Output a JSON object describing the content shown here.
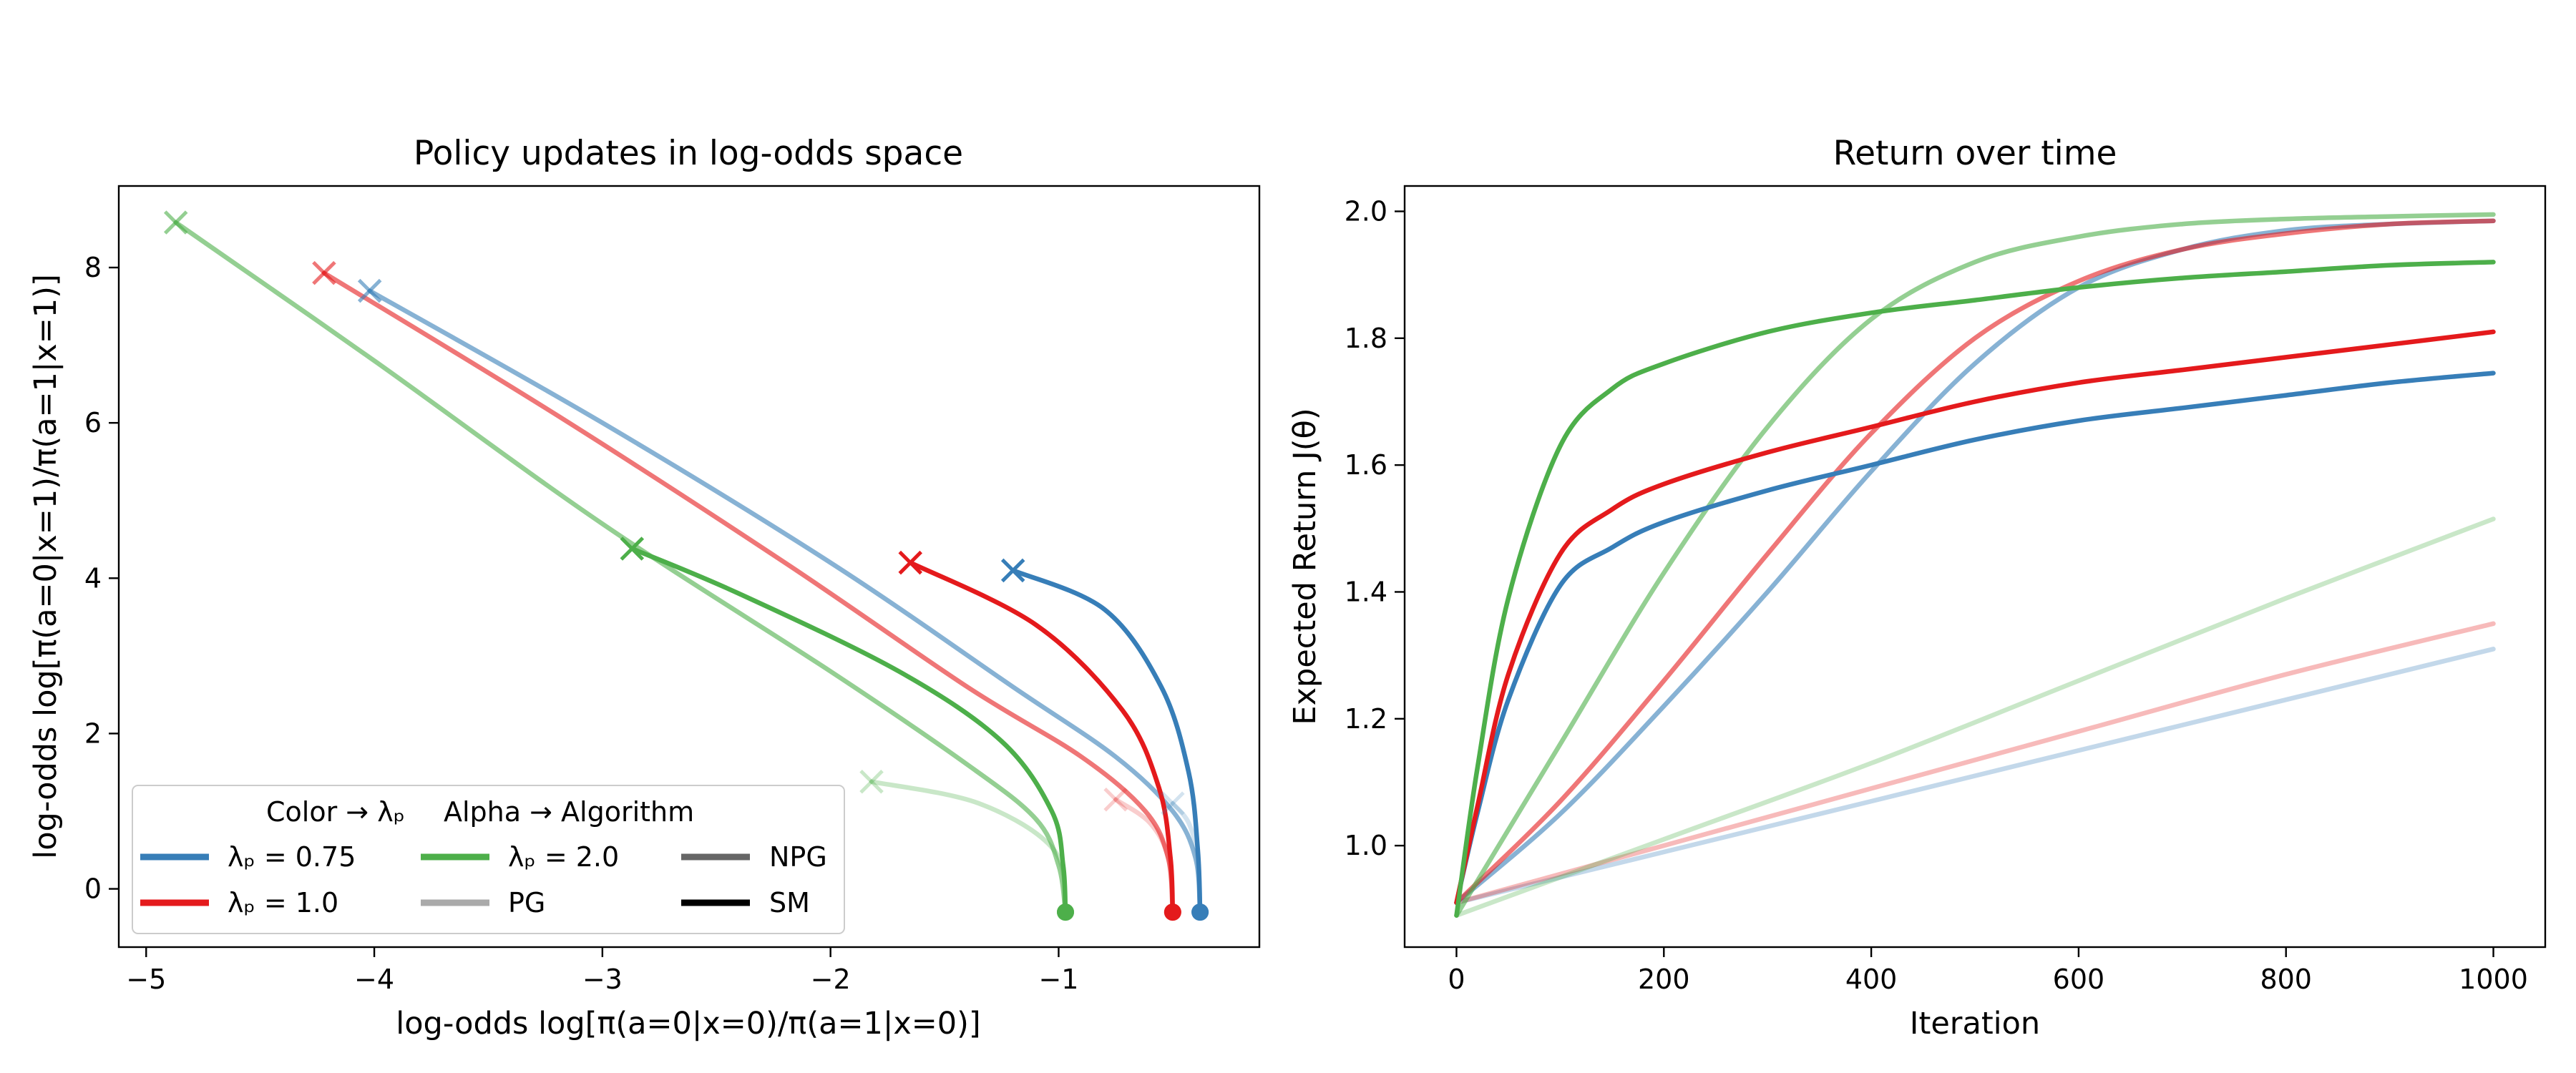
{
  "chart_data": [
    {
      "type": "line",
      "title": "Policy updates in log-odds space",
      "xlabel": "log-odds  log[π(a=0|x=0)/π(a=1|x=0)]",
      "ylabel": "log-odds  log[π(a=0|x=1)/π(a=1|x=1)]",
      "xlim": [
        -5.12,
        -0.12
      ],
      "ylim": [
        -0.75,
        9.05
      ],
      "xticks": [
        -5,
        -4,
        -3,
        -2,
        -1
      ],
      "xtick_labels": [
        "−5",
        "−4",
        "−3",
        "−2",
        "−1"
      ],
      "yticks": [
        0,
        2,
        4,
        6,
        8
      ],
      "ytick_labels": [
        "0",
        "2",
        "4",
        "6",
        "8"
      ],
      "start_point": "circle",
      "end_point": "x",
      "series": [
        {
          "name": "λp = 0.75, PG",
          "color": "#377eb8",
          "opacity": 0.22,
          "x": [
            -0.38,
            -0.39,
            -0.43,
            -0.5
          ],
          "y": [
            -0.3,
            0.4,
            0.85,
            1.1
          ]
        },
        {
          "name": "λp = 1.0, PG",
          "color": "#e41a1c",
          "opacity": 0.22,
          "x": [
            -0.5,
            -0.52,
            -0.6,
            -0.75
          ],
          "y": [
            -0.3,
            0.4,
            0.85,
            1.15
          ]
        },
        {
          "name": "λp = 2.0, PG",
          "color": "#4daf4a",
          "opacity": 0.3,
          "x": [
            -0.97,
            -1.02,
            -1.35,
            -1.82
          ],
          "y": [
            -0.3,
            0.5,
            1.1,
            1.38
          ]
        },
        {
          "name": "λp = 0.75, NPG",
          "color": "#377eb8",
          "opacity": 0.6,
          "x": [
            -0.38,
            -0.4,
            -0.5,
            -0.75,
            -1.2,
            -2.0,
            -3.0,
            -4.02
          ],
          "y": [
            -0.3,
            0.4,
            1.0,
            1.7,
            2.6,
            4.2,
            6.0,
            7.7
          ]
        },
        {
          "name": "λp = 1.0, NPG",
          "color": "#e41a1c",
          "opacity": 0.6,
          "x": [
            -0.5,
            -0.52,
            -0.62,
            -0.9,
            -1.4,
            -2.2,
            -3.2,
            -4.22
          ],
          "y": [
            -0.3,
            0.4,
            1.0,
            1.7,
            2.6,
            4.2,
            6.1,
            7.93
          ]
        },
        {
          "name": "λp = 2.0, NPG",
          "color": "#4daf4a",
          "opacity": 0.6,
          "x": [
            -0.97,
            -1.0,
            -1.1,
            -1.4,
            -2.0,
            -3.0,
            -4.0,
            -4.87
          ],
          "y": [
            -0.3,
            0.3,
            0.9,
            1.6,
            2.8,
            4.7,
            6.8,
            8.58
          ]
        },
        {
          "name": "λp = 0.75, SM",
          "color": "#377eb8",
          "opacity": 1.0,
          "x": [
            -0.38,
            -0.39,
            -0.43,
            -0.55,
            -0.8,
            -1.2
          ],
          "y": [
            -0.3,
            0.5,
            1.5,
            2.6,
            3.6,
            4.1
          ]
        },
        {
          "name": "λp = 1.0, SM",
          "color": "#e41a1c",
          "opacity": 1.0,
          "x": [
            -0.5,
            -0.51,
            -0.56,
            -0.72,
            -1.1,
            -1.65
          ],
          "y": [
            -0.3,
            0.4,
            1.3,
            2.3,
            3.4,
            4.2
          ]
        },
        {
          "name": "λp = 2.0, SM",
          "color": "#4daf4a",
          "opacity": 1.0,
          "x": [
            -0.97,
            -0.98,
            -1.03,
            -1.25,
            -1.7,
            -2.4,
            -2.87
          ],
          "y": [
            -0.3,
            0.3,
            1.0,
            1.9,
            2.8,
            3.8,
            4.38
          ]
        }
      ],
      "legend": {
        "location": "lower-left",
        "header_color": "Color → λₚ",
        "header_alpha": "Alpha → Algorithm",
        "entries": [
          {
            "label": "λₚ = 0.75",
            "color": "#377eb8"
          },
          {
            "label": "λₚ = 1.0",
            "color": "#e41a1c"
          },
          {
            "label": "λₚ = 2.0",
            "color": "#4daf4a"
          },
          {
            "label": "PG",
            "color": "#aaaaaa"
          },
          {
            "label": "NPG",
            "color": "#666666"
          },
          {
            "label": "SM",
            "color": "#000000"
          }
        ]
      }
    },
    {
      "type": "line",
      "title": "Return over time",
      "xlabel": "Iteration",
      "ylabel": "Expected Return J(θ)",
      "xlim": [
        -50,
        1050
      ],
      "ylim": [
        0.84,
        2.04
      ],
      "xticks": [
        0,
        200,
        400,
        600,
        800,
        1000
      ],
      "xtick_labels": [
        "0",
        "200",
        "400",
        "600",
        "800",
        "1000"
      ],
      "yticks": [
        1.0,
        1.2,
        1.4,
        1.6,
        1.8,
        2.0
      ],
      "ytick_labels": [
        "1.0",
        "1.2",
        "1.4",
        "1.6",
        "1.8",
        "2.0"
      ],
      "series": [
        {
          "name": "λp = 0.75, PG",
          "color": "#377eb8",
          "opacity": 0.3,
          "x": [
            0,
            200,
            400,
            600,
            800,
            1000
          ],
          "y": [
            0.91,
            0.99,
            1.07,
            1.15,
            1.23,
            1.31
          ]
        },
        {
          "name": "λp = 1.0, PG",
          "color": "#e41a1c",
          "opacity": 0.3,
          "x": [
            0,
            200,
            400,
            600,
            800,
            1000
          ],
          "y": [
            0.91,
            1.0,
            1.09,
            1.18,
            1.27,
            1.35
          ]
        },
        {
          "name": "λp = 2.0, PG",
          "color": "#4daf4a",
          "opacity": 0.3,
          "x": [
            0,
            200,
            400,
            600,
            800,
            1000
          ],
          "y": [
            0.89,
            1.01,
            1.13,
            1.26,
            1.39,
            1.515
          ]
        },
        {
          "name": "λp = 0.75, NPG",
          "color": "#377eb8",
          "opacity": 0.6,
          "x": [
            0,
            100,
            200,
            300,
            400,
            500,
            600,
            700,
            800,
            900,
            1000
          ],
          "y": [
            0.91,
            1.05,
            1.22,
            1.4,
            1.59,
            1.76,
            1.88,
            1.94,
            1.97,
            1.98,
            1.985
          ]
        },
        {
          "name": "λp = 1.0, NPG",
          "color": "#e41a1c",
          "opacity": 0.6,
          "x": [
            0,
            100,
            200,
            300,
            400,
            500,
            600,
            700,
            800,
            900,
            1000
          ],
          "y": [
            0.91,
            1.07,
            1.26,
            1.46,
            1.65,
            1.8,
            1.89,
            1.94,
            1.965,
            1.98,
            1.985
          ]
        },
        {
          "name": "λp = 2.0, NPG",
          "color": "#4daf4a",
          "opacity": 0.6,
          "x": [
            0,
            100,
            200,
            300,
            400,
            500,
            600,
            700,
            800,
            900,
            1000
          ],
          "y": [
            0.89,
            1.16,
            1.43,
            1.66,
            1.83,
            1.92,
            1.96,
            1.98,
            1.988,
            1.992,
            1.995
          ]
        },
        {
          "name": "λp = 0.75, SM",
          "color": "#377eb8",
          "opacity": 1.0,
          "x": [
            0,
            20,
            50,
            100,
            150,
            200,
            300,
            400,
            500,
            600,
            700,
            800,
            900,
            1000
          ],
          "y": [
            0.91,
            1.05,
            1.23,
            1.41,
            1.47,
            1.51,
            1.56,
            1.6,
            1.64,
            1.67,
            1.69,
            1.71,
            1.73,
            1.745
          ]
        },
        {
          "name": "λp = 1.0, SM",
          "color": "#e41a1c",
          "opacity": 1.0,
          "x": [
            0,
            20,
            50,
            100,
            150,
            200,
            300,
            400,
            500,
            600,
            700,
            800,
            900,
            1000
          ],
          "y": [
            0.91,
            1.06,
            1.27,
            1.46,
            1.53,
            1.57,
            1.62,
            1.66,
            1.7,
            1.73,
            1.75,
            1.77,
            1.79,
            1.81
          ]
        },
        {
          "name": "λp = 2.0, SM",
          "color": "#4daf4a",
          "opacity": 1.0,
          "x": [
            0,
            20,
            50,
            100,
            150,
            200,
            300,
            400,
            500,
            600,
            700,
            800,
            900,
            1000
          ],
          "y": [
            0.89,
            1.12,
            1.39,
            1.63,
            1.72,
            1.76,
            1.81,
            1.84,
            1.86,
            1.88,
            1.895,
            1.905,
            1.915,
            1.92
          ]
        }
      ]
    }
  ]
}
